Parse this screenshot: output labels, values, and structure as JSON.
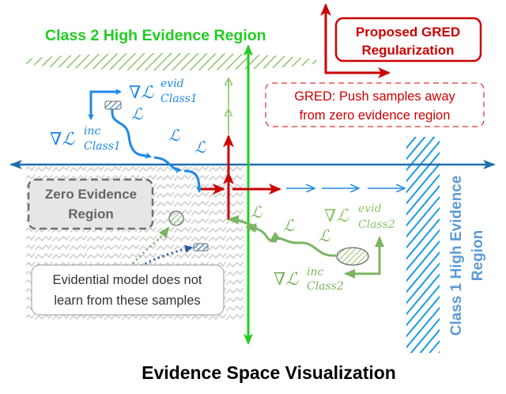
{
  "title": "Evidence Space Visualization",
  "class2_region_label": "Class 2 High Evidence Region",
  "class1_region_label": [
    "Class 1 High Evidence",
    "Region"
  ],
  "proposed_box": [
    "Proposed GRED",
    "Regularization"
  ],
  "gred_note": [
    "GRED: Push samples away",
    "from zero evidence region"
  ],
  "zero_region_label": [
    "Zero Evidence",
    "Region"
  ],
  "evidential_note": [
    "Evidential model does not",
    "learn from these samples"
  ],
  "math": {
    "nabla_L": "∇ℒ",
    "L": "ℒ",
    "evid": "evid",
    "inc": "inc",
    "class1": "Class1",
    "class2": "Class2"
  },
  "colors": {
    "class1_blue": "#1e88e5",
    "class2_green": "#7cb462",
    "axis_blue": "#1f6fb0",
    "axis_green": "#22cc22",
    "gred_red": "#cc0000",
    "zero_gray": "#777777"
  }
}
